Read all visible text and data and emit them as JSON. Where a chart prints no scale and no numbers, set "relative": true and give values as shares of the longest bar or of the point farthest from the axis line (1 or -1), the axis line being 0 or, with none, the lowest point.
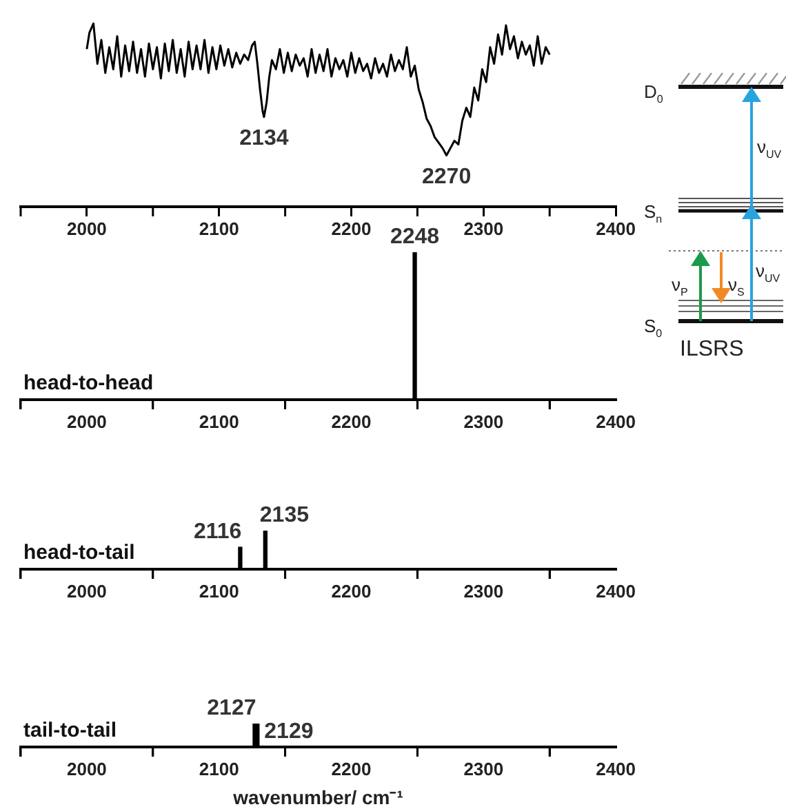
{
  "chart_data": [
    {
      "type": "line",
      "relative": true,
      "color": "#000000",
      "xlim": [
        1950,
        2400
      ],
      "xticks": [
        {
          "value": 1950,
          "label": null
        },
        2000,
        {
          "value": 2050,
          "label": null
        },
        2100,
        {
          "value": 2150,
          "label": null
        },
        2200,
        {
          "value": 2250,
          "label": null
        },
        2300,
        {
          "value": 2350,
          "label": null
        },
        2400
      ],
      "x": [
        2000,
        2002,
        2005,
        2008,
        2011,
        2014,
        2017,
        2020,
        2023,
        2026,
        2029,
        2032,
        2035,
        2038,
        2041,
        2044,
        2047,
        2050,
        2053,
        2056,
        2059,
        2062,
        2065,
        2068,
        2071,
        2074,
        2077,
        2080,
        2083,
        2086,
        2089,
        2092,
        2095,
        2098,
        2101,
        2104,
        2107,
        2110,
        2113,
        2116,
        2119,
        2122,
        2125,
        2127,
        2129,
        2131,
        2133,
        2134,
        2136,
        2138,
        2140,
        2143,
        2146,
        2149,
        2152,
        2155,
        2158,
        2161,
        2164,
        2167,
        2170,
        2173,
        2176,
        2179,
        2182,
        2185,
        2188,
        2191,
        2194,
        2197,
        2200,
        2203,
        2206,
        2209,
        2212,
        2215,
        2218,
        2221,
        2224,
        2227,
        2230,
        2233,
        2236,
        2239,
        2242,
        2245,
        2248,
        2251,
        2254,
        2257,
        2260,
        2263,
        2266,
        2269,
        2272,
        2275,
        2278,
        2281,
        2284,
        2287,
        2290,
        2293,
        2296,
        2299,
        2302,
        2305,
        2308,
        2311,
        2314,
        2317,
        2320,
        2323,
        2326,
        2329,
        2332,
        2335,
        2338,
        2341,
        2344,
        2347,
        2350
      ],
      "values": [
        0.86,
        0.95,
        1,
        0.78,
        0.91,
        0.73,
        0.87,
        0.75,
        0.93,
        0.71,
        0.88,
        0.74,
        0.9,
        0.73,
        0.86,
        0.71,
        0.89,
        0.75,
        0.87,
        0.7,
        0.89,
        0.74,
        0.91,
        0.73,
        0.86,
        0.71,
        0.9,
        0.75,
        0.88,
        0.75,
        0.91,
        0.73,
        0.87,
        0.75,
        0.88,
        0.77,
        0.86,
        0.76,
        0.84,
        0.78,
        0.83,
        0.8,
        0.88,
        0.9,
        0.78,
        0.64,
        0.52,
        0.49,
        0.57,
        0.71,
        0.8,
        0.75,
        0.86,
        0.73,
        0.84,
        0.74,
        0.83,
        0.77,
        0.81,
        0.71,
        0.86,
        0.73,
        0.83,
        0.74,
        0.86,
        0.71,
        0.81,
        0.75,
        0.8,
        0.71,
        0.84,
        0.73,
        0.81,
        0.74,
        0.78,
        0.7,
        0.81,
        0.73,
        0.78,
        0.71,
        0.83,
        0.74,
        0.8,
        0.75,
        0.87,
        0.71,
        0.77,
        0.64,
        0.57,
        0.48,
        0.44,
        0.38,
        0.35,
        0.32,
        0.28,
        0.32,
        0.36,
        0.34,
        0.47,
        0.54,
        0.49,
        0.65,
        0.58,
        0.75,
        0.68,
        0.87,
        0.78,
        0.94,
        0.83,
        0.99,
        0.86,
        0.93,
        0.81,
        0.9,
        0.83,
        0.88,
        0.77,
        0.93,
        0.78,
        0.87,
        0.83
      ],
      "annotations": [
        {
          "text": "2134",
          "x": 2134,
          "y": 0.49
        },
        {
          "text": "2270",
          "x": 2272,
          "y": 0.28
        }
      ]
    },
    {
      "type": "bar",
      "relative": true,
      "title": "head-to-head",
      "color": "#000000",
      "xlim": [
        1950,
        2400
      ],
      "xticks": [
        {
          "value": 1950,
          "label": null
        },
        2000,
        {
          "value": 2050,
          "label": null
        },
        2100,
        {
          "value": 2150,
          "label": null
        },
        2200,
        {
          "value": 2250,
          "label": null
        },
        2300,
        {
          "value": 2350,
          "label": null
        },
        2400
      ],
      "x": [
        2248
      ],
      "values": [
        1
      ],
      "annotations": [
        {
          "text": "2248",
          "x": 2248,
          "y": 1
        }
      ]
    },
    {
      "type": "bar",
      "relative": true,
      "title": "head-to-tail",
      "color": "#000000",
      "xlim": [
        1950,
        2400
      ],
      "xticks": [
        {
          "value": 1950,
          "label": null
        },
        2000,
        {
          "value": 2050,
          "label": null
        },
        2100,
        {
          "value": 2150,
          "label": null
        },
        2200,
        {
          "value": 2250,
          "label": null
        },
        2300,
        {
          "value": 2350,
          "label": null
        },
        2400
      ],
      "x": [
        2116,
        2135
      ],
      "values": [
        0.57,
        1
      ],
      "annotations": [
        {
          "text": "2116",
          "x": 2116,
          "y": 0.57
        },
        {
          "text": "2135",
          "x": 2135,
          "y": 1
        }
      ]
    },
    {
      "type": "bar",
      "relative": true,
      "title": "tail-to-tail",
      "xlabel": "wavenumber/ cm⁻¹",
      "color": "#000000",
      "xlim": [
        1950,
        2400
      ],
      "xticks": [
        {
          "value": 1950,
          "label": null
        },
        2000,
        {
          "value": 2050,
          "label": null
        },
        2100,
        {
          "value": 2150,
          "label": null
        },
        2200,
        {
          "value": 2250,
          "label": null
        },
        2300,
        {
          "value": 2350,
          "label": null
        },
        2400
      ],
      "x": [
        2127,
        2129
      ],
      "values": [
        1,
        1
      ],
      "annotations": [
        {
          "text": "2127",
          "x": 2127,
          "y": 1
        },
        {
          "text": "2129",
          "x": 2129,
          "y": 1
        }
      ]
    },
    {
      "type": "other",
      "annotations": [
        "D$_{0}$",
        "S$_{n}$",
        "S$_{0}$",
        "ν$_{UV}$",
        "ν$_{UV}$",
        "ν$_{P}$",
        "ν$_{S}$",
        "ILSRS"
      ]
    }
  ]
}
